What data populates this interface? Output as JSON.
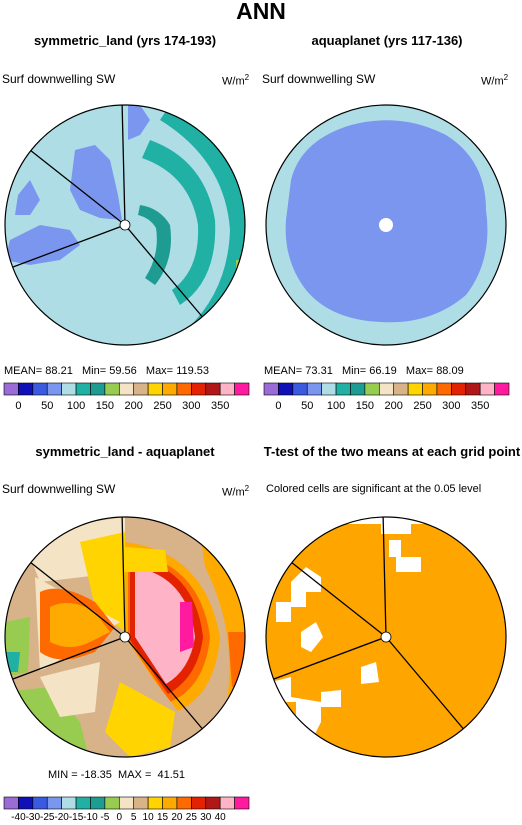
{
  "main_title": "ANN",
  "panels": {
    "p1": {
      "title": "symmetric_land (yrs 174-193)",
      "variable": "Surf downwelling SW",
      "units_base": "W/m",
      "units_exp": "2",
      "stats": {
        "mean_label": "MEAN=",
        "mean": "88.21",
        "min_label": "Min=",
        "min": "59.56",
        "max_label": "Max=",
        "max": "119.53"
      }
    },
    "p2": {
      "title": "aquaplanet (yrs 117-136)",
      "variable": "Surf downwelling SW",
      "units_base": "W/m",
      "units_exp": "2",
      "stats": {
        "mean_label": "MEAN=",
        "mean": "73.31",
        "min_label": "Min=",
        "min": "66.19",
        "max_label": "Max=",
        "max": "88.09"
      }
    },
    "p3": {
      "title": "symmetric_land - aquaplanet",
      "variable": "Surf downwelling SW",
      "units_base": "W/m",
      "units_exp": "2",
      "stats": {
        "min_label": "MIN =",
        "min": "-18.35",
        "max_label": "MAX =",
        "max": "41.51"
      }
    },
    "p4": {
      "title": "T-test of the two means at each grid point",
      "subtitle": "Colored cells are significant at the 0.05 level"
    }
  },
  "colorbar_abs": {
    "colors": [
      "#9b6bd6",
      "#1010b8",
      "#3a5ae0",
      "#7b96ee",
      "#aedde6",
      "#20b0a4",
      "#1f9c92",
      "#97cc50",
      "#f4e3c4",
      "#d8b38a",
      "#ffd400",
      "#ffaa00",
      "#ff6a00",
      "#e22200",
      "#b01818",
      "#ffb3c6",
      "#ff1aa0"
    ],
    "labels": [
      "0",
      "50",
      "100",
      "150",
      "200",
      "250",
      "300",
      "350"
    ]
  },
  "colorbar_diff": {
    "colors": [
      "#9b6bd6",
      "#1010b8",
      "#3a5ae0",
      "#7b96ee",
      "#aedde6",
      "#20b0a4",
      "#1f9c92",
      "#97cc50",
      "#f4e3c4",
      "#d8b38a",
      "#ffd400",
      "#ffaa00",
      "#ff6a00",
      "#e22200",
      "#b01818",
      "#ffb3c6",
      "#ff1aa0"
    ],
    "labels": [
      "-40",
      "-30",
      "-25",
      "-20",
      "-15",
      "-10",
      "-5",
      "0",
      "5",
      "10",
      "15",
      "20",
      "25",
      "30",
      "40"
    ]
  },
  "map_colors": {
    "light_blue": "#aedde6",
    "mid_blue": "#7b96ee",
    "teal": "#20b0a4",
    "green": "#97cc50",
    "beige": "#f4e3c4",
    "tan": "#d8b38a",
    "yellow": "#ffd400",
    "orange": "#ffaa00",
    "red_orange": "#ff6a00",
    "red": "#e22200",
    "pink": "#ffb3c6",
    "magenta": "#ff1aa0",
    "significant": "#ffa500"
  }
}
